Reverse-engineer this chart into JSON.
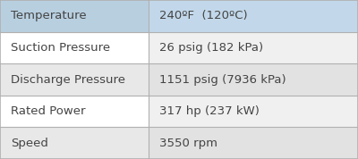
{
  "rows": [
    {
      "label": "Temperature",
      "value": "240ºF  (120ºC)"
    },
    {
      "label": "Suction Pressure",
      "value": "26 psig (182 kPa)"
    },
    {
      "label": "Discharge Pressure",
      "value": "1151 psig (7936 kPa)"
    },
    {
      "label": "Rated Power",
      "value": "317 hp (237 kW)"
    },
    {
      "label": "Speed",
      "value": "3550 rpm"
    }
  ],
  "label_bg_colors": [
    "#b8cfe0",
    "#ffffff",
    "#e8e8e8",
    "#ffffff",
    "#e8e8e8"
  ],
  "value_bg_colors": [
    "#c2d8ea",
    "#f0f0f0",
    "#e2e2e2",
    "#f0f0f0",
    "#e2e2e2"
  ],
  "border_color": "#b0b0b0",
  "text_color": "#444444",
  "label_fontsize": 9.5,
  "value_fontsize": 9.5,
  "col_split": 0.415,
  "fig_width": 4.0,
  "fig_height": 1.78,
  "dpi": 100
}
